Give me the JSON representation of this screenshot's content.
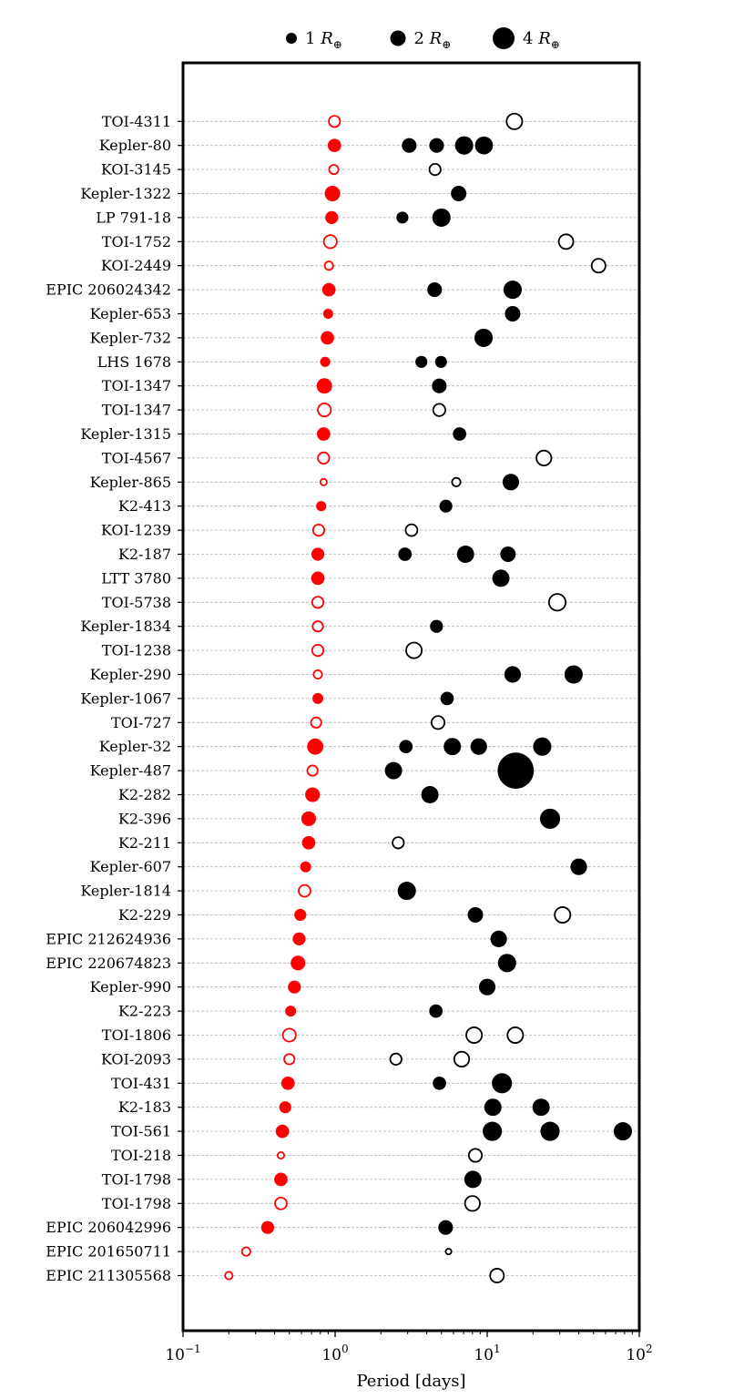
{
  "chart_data": {
    "type": "scatter",
    "xlabel": "Period [days]",
    "xscale": "log",
    "xlim": [
      0.1,
      100
    ],
    "x_tick_labels": [
      {
        "base": "10",
        "exp": "−1"
      },
      {
        "base": "10",
        "exp": "0"
      },
      {
        "base": "10",
        "exp": "1"
      },
      {
        "base": "10",
        "exp": "2"
      }
    ],
    "grid": "horizontal dashed per system",
    "legend_placement": "top-center, outside",
    "legend": [
      {
        "value": "1",
        "unit": "R",
        "sub": "⊕",
        "radius": 1
      },
      {
        "value": "2",
        "unit": "R",
        "sub": "⊕",
        "radius": 2
      },
      {
        "value": "4",
        "unit": "R",
        "sub": "⊕",
        "radius": 4
      }
    ],
    "colors": {
      "ultra_short_period": "#ff0000",
      "companion": "#000000",
      "gridline": "#b0b0b0"
    },
    "point_fields": [
      "period_days",
      "radius_earth",
      "filled"
    ],
    "systems": [
      {
        "name": "TOI-4311",
        "planets": [
          [
            0.99,
            1.4,
            false
          ],
          [
            15.1,
            2.5,
            false
          ]
        ]
      },
      {
        "name": "Kepler-80",
        "planets": [
          [
            0.99,
            1.5,
            true
          ],
          [
            3.07,
            1.8,
            true
          ],
          [
            4.65,
            1.8,
            true
          ],
          [
            7.05,
            2.8,
            true
          ],
          [
            9.52,
            2.7,
            true
          ]
        ]
      },
      {
        "name": "KOI-3145",
        "planets": [
          [
            0.98,
            1.0,
            false
          ],
          [
            4.54,
            1.4,
            false
          ]
        ]
      },
      {
        "name": "Kepler-1322",
        "planets": [
          [
            0.96,
            2.0,
            true
          ],
          [
            6.49,
            2.0,
            true
          ]
        ]
      },
      {
        "name": "LP 791-18",
        "planets": [
          [
            0.95,
            1.4,
            true
          ],
          [
            2.77,
            1.2,
            true
          ],
          [
            5.0,
            2.8,
            true
          ]
        ]
      },
      {
        "name": "TOI-1752",
        "planets": [
          [
            0.93,
            1.8,
            false
          ],
          [
            33.0,
            2.2,
            false
          ]
        ]
      },
      {
        "name": "KOI-2449",
        "planets": [
          [
            0.91,
            0.85,
            false
          ],
          [
            54.0,
            2.0,
            false
          ]
        ]
      },
      {
        "name": "EPIC 206024342",
        "planets": [
          [
            0.91,
            1.5,
            true
          ],
          [
            4.51,
            1.8,
            true
          ],
          [
            14.7,
            2.8,
            true
          ]
        ]
      },
      {
        "name": "Kepler-653",
        "planets": [
          [
            0.9,
            0.85,
            true
          ],
          [
            14.7,
            2.0,
            true
          ]
        ]
      },
      {
        "name": "Kepler-732",
        "planets": [
          [
            0.89,
            1.5,
            true
          ],
          [
            9.47,
            2.8,
            true
          ]
        ]
      },
      {
        "name": "LHS 1678",
        "planets": [
          [
            0.86,
            0.85,
            true
          ],
          [
            3.69,
            1.2,
            true
          ],
          [
            4.97,
            1.2,
            true
          ]
        ]
      },
      {
        "name": "TOI-1347",
        "planets": [
          [
            0.85,
            2.0,
            true
          ],
          [
            4.84,
            1.8,
            true
          ]
        ]
      },
      {
        "name": "TOI-1347",
        "planets": [
          [
            0.85,
            1.8,
            false
          ],
          [
            4.84,
            1.6,
            false
          ]
        ]
      },
      {
        "name": "Kepler-1315",
        "planets": [
          [
            0.84,
            1.5,
            true
          ],
          [
            6.58,
            1.5,
            true
          ]
        ]
      },
      {
        "name": "TOI-4567",
        "planets": [
          [
            0.84,
            1.4,
            false
          ],
          [
            23.6,
            2.3,
            false
          ]
        ]
      },
      {
        "name": "Kepler-865",
        "planets": [
          [
            0.84,
            0.56,
            false
          ],
          [
            6.26,
            0.85,
            false
          ],
          [
            14.3,
            2.3,
            true
          ]
        ]
      },
      {
        "name": "K2-413",
        "planets": [
          [
            0.81,
            0.85,
            true
          ],
          [
            5.35,
            1.4,
            true
          ]
        ]
      },
      {
        "name": "KOI-1239",
        "planets": [
          [
            0.78,
            1.4,
            false
          ],
          [
            3.18,
            1.5,
            false
          ]
        ]
      },
      {
        "name": "K2-187",
        "planets": [
          [
            0.77,
            1.4,
            true
          ],
          [
            2.88,
            1.5,
            true
          ],
          [
            7.2,
            2.5,
            true
          ],
          [
            13.7,
            2.0,
            true
          ]
        ]
      },
      {
        "name": "LTT 3780",
        "planets": [
          [
            0.77,
            1.5,
            true
          ],
          [
            12.3,
            2.5,
            true
          ]
        ]
      },
      {
        "name": "TOI-5738",
        "planets": [
          [
            0.77,
            1.4,
            false
          ],
          [
            28.9,
            2.8,
            false
          ]
        ]
      },
      {
        "name": "Kepler-1834",
        "planets": [
          [
            0.77,
            1.2,
            false
          ],
          [
            4.64,
            1.4,
            true
          ]
        ]
      },
      {
        "name": "TOI-1238",
        "planets": [
          [
            0.77,
            1.4,
            false
          ],
          [
            3.3,
            2.5,
            false
          ]
        ]
      },
      {
        "name": "Kepler-290",
        "planets": [
          [
            0.77,
            0.85,
            false
          ],
          [
            14.7,
            2.3,
            true
          ],
          [
            37.0,
            2.8,
            true
          ]
        ]
      },
      {
        "name": "Kepler-1067",
        "planets": [
          [
            0.77,
            1.0,
            true
          ],
          [
            5.45,
            1.5,
            true
          ]
        ]
      },
      {
        "name": "TOI-727",
        "planets": [
          [
            0.75,
            1.2,
            false
          ],
          [
            4.75,
            1.8,
            false
          ]
        ]
      },
      {
        "name": "Kepler-32",
        "planets": [
          [
            0.74,
            2.2,
            true
          ],
          [
            2.92,
            1.5,
            true
          ],
          [
            5.9,
            2.5,
            true
          ],
          [
            8.8,
            2.3,
            true
          ],
          [
            23.0,
            2.8,
            true
          ]
        ]
      },
      {
        "name": "Kepler-487",
        "planets": [
          [
            0.71,
            1.2,
            false
          ],
          [
            2.42,
            2.5,
            true
          ],
          [
            15.4,
            11.0,
            true
          ]
        ]
      },
      {
        "name": "K2-282",
        "planets": [
          [
            0.71,
            1.8,
            true
          ],
          [
            4.2,
            2.5,
            true
          ]
        ]
      },
      {
        "name": "K2-396",
        "planets": [
          [
            0.67,
            1.8,
            true
          ],
          [
            25.9,
            3.4,
            true
          ]
        ]
      },
      {
        "name": "K2-211",
        "planets": [
          [
            0.67,
            1.5,
            true
          ],
          [
            2.6,
            1.4,
            false
          ]
        ]
      },
      {
        "name": "Kepler-607",
        "planets": [
          [
            0.64,
            1.0,
            true
          ],
          [
            40.0,
            2.3,
            true
          ]
        ]
      },
      {
        "name": "Kepler-1814",
        "planets": [
          [
            0.63,
            1.5,
            false
          ],
          [
            2.96,
            2.8,
            true
          ]
        ]
      },
      {
        "name": "K2-229",
        "planets": [
          [
            0.59,
            1.2,
            true
          ],
          [
            8.36,
            2.0,
            true
          ],
          [
            31.3,
            2.5,
            false
          ]
        ]
      },
      {
        "name": "EPIC 212624936",
        "planets": [
          [
            0.58,
            1.4,
            true
          ],
          [
            11.9,
            2.3,
            true
          ]
        ]
      },
      {
        "name": "EPIC 220674823",
        "planets": [
          [
            0.57,
            1.8,
            true
          ],
          [
            13.5,
            2.8,
            true
          ]
        ]
      },
      {
        "name": "Kepler-990",
        "planets": [
          [
            0.54,
            1.4,
            true
          ],
          [
            10.0,
            2.3,
            true
          ]
        ]
      },
      {
        "name": "K2-223",
        "planets": [
          [
            0.51,
            1.0,
            true
          ],
          [
            4.6,
            1.5,
            true
          ]
        ]
      },
      {
        "name": "TOI-1806",
        "planets": [
          [
            0.5,
            1.8,
            false
          ],
          [
            8.2,
            2.5,
            false
          ],
          [
            15.3,
            2.5,
            false
          ]
        ]
      },
      {
        "name": "KOI-2093",
        "planets": [
          [
            0.5,
            1.2,
            false
          ],
          [
            2.51,
            1.4,
            false
          ],
          [
            6.8,
            2.3,
            false
          ]
        ]
      },
      {
        "name": "TOI-431",
        "planets": [
          [
            0.49,
            1.5,
            true
          ],
          [
            4.85,
            1.5,
            true
          ],
          [
            12.5,
            3.4,
            true
          ]
        ]
      },
      {
        "name": "K2-183",
        "planets": [
          [
            0.47,
            1.2,
            true
          ],
          [
            10.9,
            2.5,
            true
          ],
          [
            22.6,
            2.5,
            true
          ]
        ]
      },
      {
        "name": "TOI-561",
        "planets": [
          [
            0.45,
            1.5,
            true
          ],
          [
            10.8,
            3.1,
            true
          ],
          [
            25.9,
            3.1,
            true
          ],
          [
            78.0,
            2.8,
            true
          ]
        ]
      },
      {
        "name": "TOI-218",
        "planets": [
          [
            0.44,
            0.56,
            false
          ],
          [
            8.36,
            1.8,
            false
          ]
        ]
      },
      {
        "name": "TOI-1798",
        "planets": [
          [
            0.44,
            1.5,
            true
          ],
          [
            8.05,
            2.5,
            true
          ]
        ]
      },
      {
        "name": "TOI-1798",
        "planets": [
          [
            0.44,
            1.5,
            false
          ],
          [
            8.0,
            2.3,
            false
          ]
        ]
      },
      {
        "name": "EPIC 206042996",
        "planets": [
          [
            0.36,
            1.4,
            true
          ],
          [
            5.33,
            1.8,
            true
          ]
        ]
      },
      {
        "name": "EPIC 201650711",
        "planets": [
          [
            0.26,
            0.85,
            false
          ],
          [
            5.57,
            0.45,
            false
          ]
        ]
      },
      {
        "name": "EPIC 211305568",
        "planets": [
          [
            0.2,
            0.7,
            false
          ],
          [
            11.6,
            2.0,
            false
          ]
        ]
      }
    ]
  }
}
